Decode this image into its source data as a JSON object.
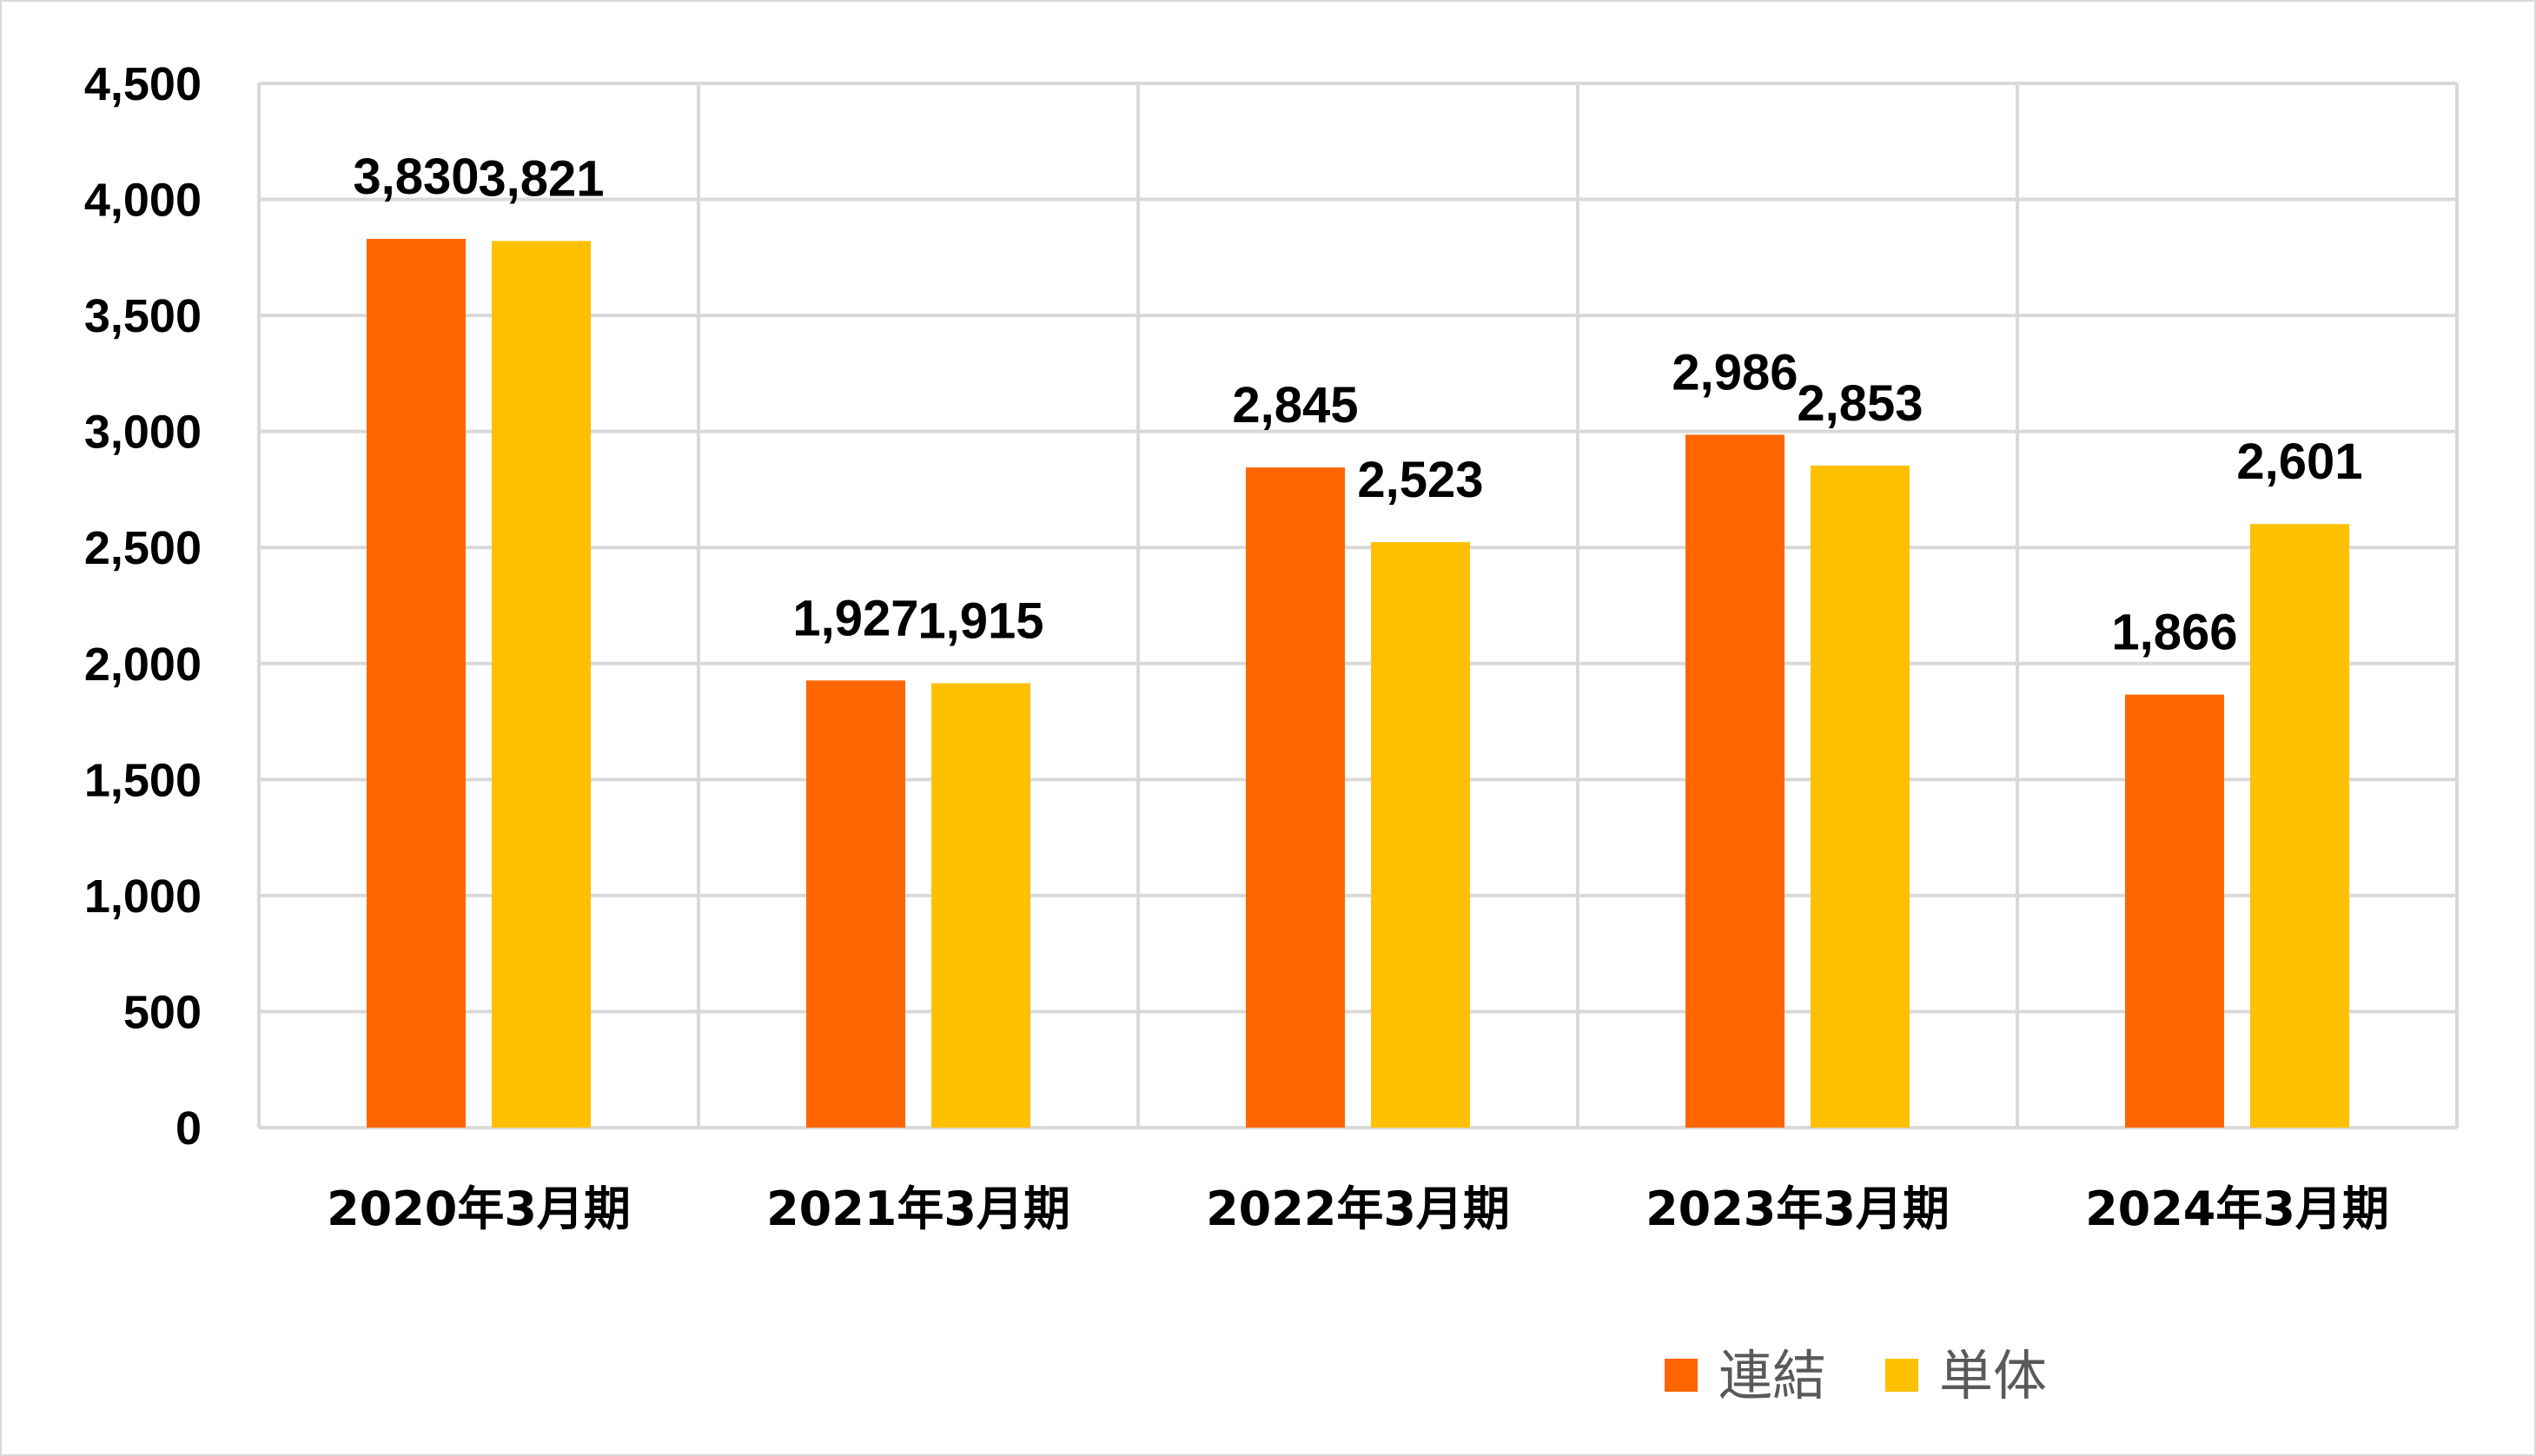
{
  "chart_data": {
    "type": "bar",
    "categories": [
      "2020年3月期",
      "2021年3月期",
      "2022年3月期",
      "2023年3月期",
      "2024年3月期"
    ],
    "series": [
      {
        "name": "連結",
        "color": "#ff6600",
        "values": [
          3830,
          1927,
          2845,
          2986,
          1866
        ],
        "labels": [
          "3,830",
          "1,927",
          "2,845",
          "2,986",
          "1,866"
        ]
      },
      {
        "name": "単体",
        "color": "#ffc000",
        "values": [
          3821,
          1915,
          2523,
          2853,
          2601
        ],
        "labels": [
          "3,821",
          "1,915",
          "2,523",
          "2,853",
          "2,601"
        ]
      }
    ],
    "yticks": [
      0,
      500,
      1000,
      1500,
      2000,
      2500,
      3000,
      3500,
      4000,
      4500
    ],
    "ytick_labels": [
      "0",
      "500",
      "1,000",
      "1,500",
      "2,000",
      "2,500",
      "3,000",
      "3,500",
      "4,000",
      "4,500"
    ],
    "ylim": [
      0,
      4500
    ],
    "grid": true,
    "legend": "bottom-right"
  }
}
